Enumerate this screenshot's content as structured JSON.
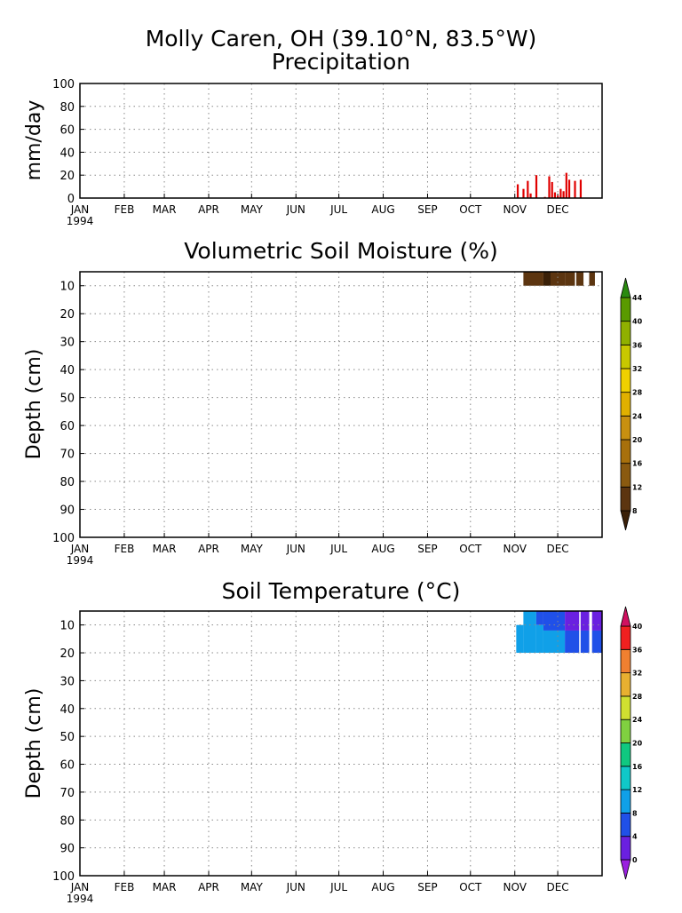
{
  "figure": {
    "title_line1": "Molly Caren, OH (39.10°N, 83.5°W)"
  },
  "months": [
    "JAN",
    "FEB",
    "MAR",
    "APR",
    "MAY",
    "JUN",
    "JUL",
    "AUG",
    "SEP",
    "OCT",
    "NOV",
    "DEC"
  ],
  "year_label": "1994",
  "colors": {
    "precip_bar": "#e00000",
    "grid": "#888888"
  },
  "chart_data": [
    {
      "type": "bar",
      "title": "Precipitation",
      "ylabel": "mm/day",
      "xlabel": "",
      "ylim": [
        0,
        100
      ],
      "yticks": [
        0,
        20,
        40,
        60,
        80,
        100
      ],
      "x_unit": "day of year 1994",
      "xlim": [
        1,
        366
      ],
      "grid": true,
      "bars": [
        {
          "day": 307,
          "value": 12
        },
        {
          "day": 311,
          "value": 8
        },
        {
          "day": 314,
          "value": 15
        },
        {
          "day": 316,
          "value": 4
        },
        {
          "day": 320,
          "value": 20
        },
        {
          "day": 326,
          "value": 1
        },
        {
          "day": 329,
          "value": 19
        },
        {
          "day": 331,
          "value": 14
        },
        {
          "day": 333,
          "value": 5
        },
        {
          "day": 335,
          "value": 2
        },
        {
          "day": 337,
          "value": 8
        },
        {
          "day": 339,
          "value": 6
        },
        {
          "day": 341,
          "value": 22
        },
        {
          "day": 343,
          "value": 16
        },
        {
          "day": 347,
          "value": 15
        },
        {
          "day": 351,
          "value": 16
        }
      ]
    },
    {
      "type": "heatmap",
      "title": "Volumetric Soil Moisture (%)",
      "ylabel": "Depth (cm)",
      "xlabel": "",
      "ylim": [
        100,
        5
      ],
      "yticks": [
        10,
        20,
        30,
        40,
        50,
        60,
        70,
        80,
        90,
        100
      ],
      "grid": true,
      "colorbar_ticks": [
        8,
        12,
        16,
        20,
        24,
        28,
        32,
        36,
        40,
        44
      ],
      "colorbar_colors": [
        "#3a2008",
        "#5c3510",
        "#8a5a10",
        "#a8700c",
        "#c89010",
        "#e0b000",
        "#f0d000",
        "#c8c800",
        "#90b000",
        "#5a9a00",
        "#2a8a10"
      ],
      "cells": [
        {
          "day_start": 311,
          "day_end": 325,
          "depth_top": 5,
          "depth_bottom": 10,
          "value": 10
        },
        {
          "day_start": 325,
          "day_end": 330,
          "depth_top": 5,
          "depth_bottom": 10,
          "value": 7
        },
        {
          "day_start": 330,
          "day_end": 340,
          "depth_top": 5,
          "depth_bottom": 10,
          "value": 10
        },
        {
          "day_start": 340,
          "day_end": 347,
          "depth_top": 5,
          "depth_bottom": 10,
          "value": 11
        },
        {
          "day_start": 348,
          "day_end": 353,
          "depth_top": 5,
          "depth_bottom": 10,
          "value": 11
        },
        {
          "day_start": 357,
          "day_end": 361,
          "depth_top": 5,
          "depth_bottom": 10,
          "value": 11
        }
      ]
    },
    {
      "type": "heatmap",
      "title": "Soil Temperature (°C)",
      "ylabel": "Depth (cm)",
      "xlabel": "",
      "ylim": [
        100,
        5
      ],
      "yticks": [
        10,
        20,
        30,
        40,
        50,
        60,
        70,
        80,
        90,
        100
      ],
      "grid": true,
      "colorbar_ticks": [
        0,
        4,
        8,
        12,
        16,
        20,
        24,
        28,
        32,
        36,
        40
      ],
      "colorbar_colors": [
        "#9a20e0",
        "#6a20e0",
        "#2050e8",
        "#10a0e8",
        "#10c8c8",
        "#10c880",
        "#80d040",
        "#d0e030",
        "#e8b030",
        "#f08030",
        "#f02020",
        "#d01060"
      ],
      "cells": [
        {
          "day_start": 306,
          "day_end": 311,
          "depth_top": 10,
          "depth_bottom": 20,
          "value": 10
        },
        {
          "day_start": 311,
          "day_end": 320,
          "depth_top": 5,
          "depth_bottom": 20,
          "value": 10
        },
        {
          "day_start": 320,
          "day_end": 325,
          "depth_top": 5,
          "depth_bottom": 10,
          "value": 7
        },
        {
          "day_start": 320,
          "day_end": 325,
          "depth_top": 10,
          "depth_bottom": 20,
          "value": 9
        },
        {
          "day_start": 325,
          "day_end": 340,
          "depth_top": 5,
          "depth_bottom": 12,
          "value": 5
        },
        {
          "day_start": 325,
          "day_end": 340,
          "depth_top": 12,
          "depth_bottom": 20,
          "value": 8
        },
        {
          "day_start": 340,
          "day_end": 350,
          "depth_top": 5,
          "depth_bottom": 12,
          "value": 3
        },
        {
          "day_start": 340,
          "day_end": 350,
          "depth_top": 12,
          "depth_bottom": 20,
          "value": 7
        },
        {
          "day_start": 351,
          "day_end": 357,
          "depth_top": 5,
          "depth_bottom": 12,
          "value": 2
        },
        {
          "day_start": 351,
          "day_end": 357,
          "depth_top": 12,
          "depth_bottom": 20,
          "value": 7
        },
        {
          "day_start": 359,
          "day_end": 366,
          "depth_top": 5,
          "depth_bottom": 12,
          "value": 2
        },
        {
          "day_start": 359,
          "day_end": 366,
          "depth_top": 12,
          "depth_bottom": 20,
          "value": 7
        }
      ]
    }
  ]
}
